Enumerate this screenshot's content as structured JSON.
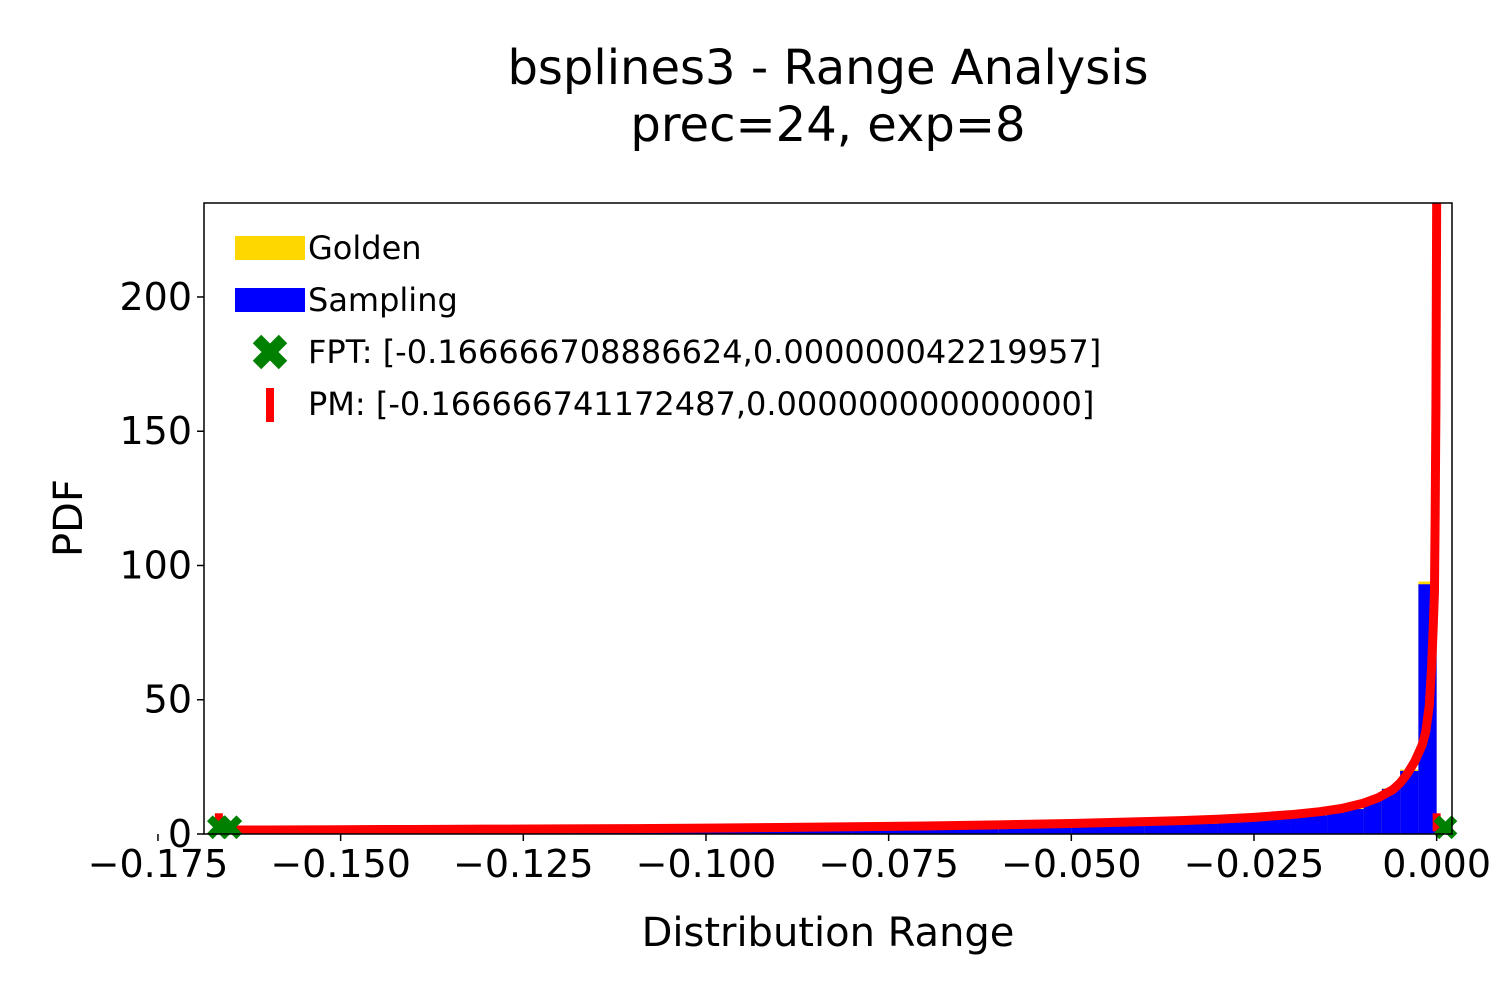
{
  "chart_data": {
    "type": "bar",
    "title": "bsplines3 - Range Analysis",
    "subtitle": "prec=24, exp=8",
    "xlabel": "Distribution Range",
    "ylabel": "PDF",
    "xlim": [
      -0.1687,
      0.0021
    ],
    "ylim": [
      0,
      235
    ],
    "xticks": [
      -0.175,
      -0.15,
      -0.125,
      -0.1,
      -0.075,
      -0.05,
      -0.025,
      0.0
    ],
    "xtick_labels": [
      "−0.175",
      "−0.150",
      "−0.125",
      "−0.100",
      "−0.075",
      "−0.050",
      "−0.025",
      "0.000"
    ],
    "yticks": [
      0,
      50,
      100,
      150,
      200
    ],
    "ytick_labels": [
      "0",
      "50",
      "100",
      "150",
      "200"
    ],
    "grid": false,
    "legend_position": "top-left",
    "colors": {
      "golden": "#ffd700",
      "sampling": "#0000ff",
      "fpt": "#008000",
      "pm": "#ff0000"
    },
    "legend": [
      {
        "label": "Golden",
        "marker": "bar",
        "color": "#ffd700"
      },
      {
        "label": "Sampling",
        "marker": "bar",
        "color": "#0000ff"
      },
      {
        "label": "FPT: [-0.166666708886624,0.000000042219957]",
        "marker": "x",
        "color": "#008000"
      },
      {
        "label": "PM: [-0.166666741172487,0.000000000000000]",
        "marker": "line",
        "color": "#ff0000"
      }
    ],
    "series": [
      {
        "name": "Golden",
        "bin_edges": [
          -0.16667,
          -0.145,
          -0.125,
          -0.1,
          -0.08,
          -0.06,
          -0.05,
          -0.04,
          -0.03,
          -0.025,
          -0.02,
          -0.015,
          -0.01,
          -0.0075,
          -0.005,
          -0.0025,
          0.0
        ],
        "values": [
          1.3,
          1.4,
          1.5,
          1.7,
          2.0,
          2.6,
          3.1,
          3.9,
          5.0,
          5.9,
          7.0,
          9.5,
          13.0,
          17.0,
          24.0,
          94.0
        ]
      },
      {
        "name": "Sampling",
        "bin_edges": [
          -0.16667,
          -0.145,
          -0.125,
          -0.1,
          -0.08,
          -0.06,
          -0.05,
          -0.04,
          -0.03,
          -0.025,
          -0.02,
          -0.015,
          -0.01,
          -0.0075,
          -0.005,
          -0.0025,
          0.0
        ],
        "values": [
          1.2,
          1.3,
          1.4,
          1.6,
          1.9,
          2.5,
          3.0,
          3.8,
          4.9,
          5.8,
          6.9,
          9.3,
          12.8,
          16.8,
          23.5,
          93.0
        ]
      },
      {
        "name": "PM",
        "x": [
          -0.16667,
          -0.16,
          -0.15,
          -0.14,
          -0.13,
          -0.12,
          -0.11,
          -0.1,
          -0.09,
          -0.08,
          -0.07,
          -0.06,
          -0.05,
          -0.04,
          -0.035,
          -0.03,
          -0.025,
          -0.02,
          -0.016,
          -0.013,
          -0.01,
          -0.008,
          -0.006,
          -0.005,
          -0.004,
          -0.003,
          -0.002,
          -0.0015,
          -0.001,
          -0.0007,
          -0.0005,
          -0.0003,
          -0.0002,
          -0.0001,
          0.0
        ],
        "y": [
          1.5,
          1.5,
          1.6,
          1.7,
          1.8,
          1.9,
          2.0,
          2.2,
          2.4,
          2.7,
          3.0,
          3.4,
          3.9,
          4.6,
          5.0,
          5.5,
          6.2,
          7.2,
          8.3,
          9.5,
          11.5,
          13.5,
          16.5,
          19.0,
          22.5,
          27.0,
          33.0,
          38.0,
          48.0,
          62.0,
          75.0,
          90.0,
          120.0,
          160.0,
          235.0
        ]
      }
    ],
    "fpt_points": [
      [
        -0.16667,
        2.5
      ],
      [
        -0.1651,
        2.5
      ],
      [
        0.0012,
        2.5
      ]
    ],
    "pm_bounds": [
      [
        -0.16667,
        2.5
      ],
      [
        0.0,
        2.5
      ]
    ]
  }
}
